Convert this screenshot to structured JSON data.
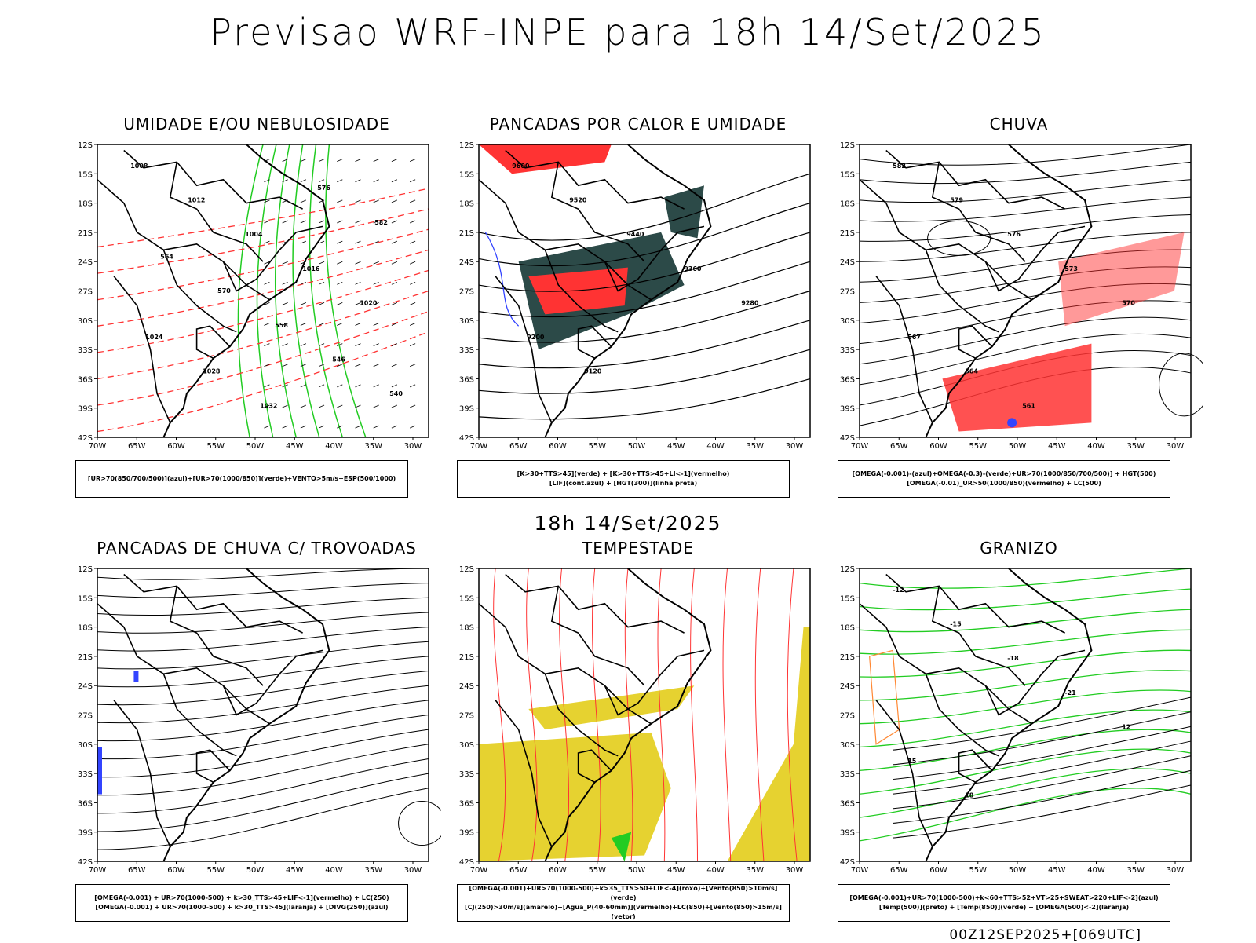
{
  "title": "Previsao WRF-INPE  para 18h 14/Set/2025",
  "subtitle": "18h 14/Set/2025",
  "footer": "00Z12SEP2025+[069UTC]",
  "axes": {
    "lat": [
      "12S",
      "15S",
      "18S",
      "21S",
      "24S",
      "27S",
      "30S",
      "33S",
      "36S",
      "39S",
      "42S"
    ],
    "lon": [
      "70W",
      "65W",
      "60W",
      "55W",
      "50W",
      "45W",
      "40W",
      "35W",
      "30W"
    ]
  },
  "colors": {
    "green": "#22cc22",
    "red": "#ff3333",
    "blue": "#3344ff",
    "yellow": "#e6d230",
    "dark": "#2c4a48",
    "orange": "#ff8833"
  },
  "panels": [
    {
      "id": "p1",
      "title": "UMIDADE E/OU NEBULOSIDADE",
      "legend": [
        "[UR>70(850/700/500)](azul)+[UR>70(1000/850)](verde)+VENTO>5m/s+ESP(500/1000)"
      ],
      "labels": [
        "1008",
        "1012",
        "1004",
        "1016",
        "1020",
        "1024",
        "1028",
        "1032",
        "576",
        "582",
        "564",
        "570",
        "558",
        "546",
        "540"
      ]
    },
    {
      "id": "p2",
      "title": "PANCADAS POR CALOR E UMIDADE",
      "legend": [
        "[K>30+TTS>45](verde) + [K>30+TTS>45+LI<-1](vermelho)",
        "[LIF](cont.azul) + [HGT(300)](linha preta)"
      ],
      "labels": [
        "9600",
        "9520",
        "9440",
        "9360",
        "9280",
        "9200",
        "9120"
      ]
    },
    {
      "id": "p3",
      "title": "CHUVA",
      "legend": [
        "[OMEGA(-0.001)-(azul)+OMEGA(-0.3)-(verde)+UR>70(1000/850/700/500)] + HGT(500)",
        "[OMEGA(-0.01)_UR>50(1000/850)(vermelho) + LC(500)"
      ],
      "labels": [
        "582",
        "579",
        "576",
        "573",
        "570",
        "567",
        "564",
        "561"
      ]
    },
    {
      "id": "p4",
      "title": "PANCADAS DE CHUVA C/ TROVOADAS",
      "legend": [
        "[OMEGA(-0.001) + UR>70(1000-500) + k>30_TTS>45+LIF<-1](vermelho) + LC(250)",
        "[OMEGA(-0.001) + UR>70(1000-500) + k>30_TTS>45](laranja) + [DIVG(250)](azul)"
      ],
      "labels": []
    },
    {
      "id": "p5",
      "title": "TEMPESTADE",
      "legend": [
        "[OMEGA(-0.001)+UR>70(1000-500)+k>35_TTS>50+LIF<-4](roxo)+[Vento(850)>10m/s](verde)",
        "[CJ(250)>30m/s](amarelo)+[Agua_P(40-60mm)](vermelho)+LC(850)+[Vento(850)>15m/s](vetor)"
      ],
      "labels": []
    },
    {
      "id": "p6",
      "title": "GRANIZO",
      "legend": [
        "[OMEGA(-0.001)+UR>70(1000-500)+k<60+TTS>52+VT>25+SWEAT>220+LIF<-2](azul)",
        "[Temp(500)](preto) + [Temp(850)](verde) + [OMEGA(500)<-2](laranja)"
      ],
      "labels": [
        "-12",
        "-15",
        "-18",
        "-21",
        "12",
        "15",
        "18"
      ]
    }
  ]
}
